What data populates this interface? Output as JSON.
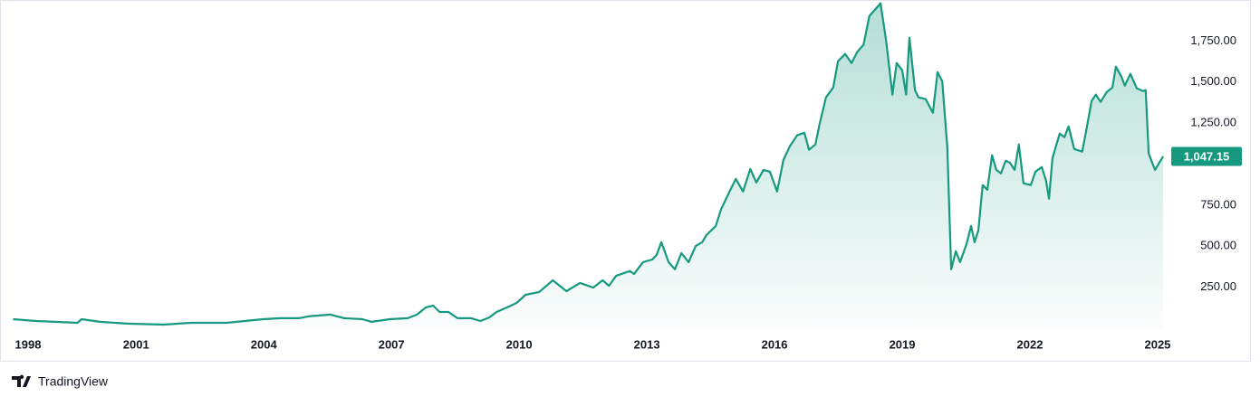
{
  "chart_data": {
    "type": "area",
    "source": "TradingView",
    "color": "#16997f",
    "xlim": [
      1998.1,
      2025.15
    ],
    "xticks": [
      1998,
      2001,
      2004,
      2007,
      2010,
      2013,
      2016,
      2019,
      2022,
      2025
    ],
    "ylim": [
      0,
      2000
    ],
    "yticks": [
      {
        "value": 250,
        "label": "250.00"
      },
      {
        "value": 500,
        "label": "500.00"
      },
      {
        "value": 750,
        "label": "750.00"
      },
      {
        "value": 1250,
        "label": "1,250.00"
      },
      {
        "value": 1500,
        "label": "1,500.00"
      },
      {
        "value": 1750,
        "label": "1,750.00"
      }
    ],
    "last_value": {
      "value": 1047.15,
      "label": "1,047.15"
    },
    "x": [
      1998.11,
      1998.66,
      1999.09,
      1999.62,
      1999.72,
      2000.15,
      2000.79,
      2001.64,
      2002.28,
      2003.13,
      2003.55,
      2003.98,
      2004.4,
      2004.83,
      2005.04,
      2005.57,
      2005.89,
      2006.32,
      2006.53,
      2006.96,
      2007.38,
      2007.6,
      2007.81,
      2007.98,
      2008.13,
      2008.34,
      2008.55,
      2008.87,
      2009.09,
      2009.3,
      2009.47,
      2009.72,
      2009.94,
      2010.15,
      2010.47,
      2010.79,
      2011.11,
      2011.43,
      2011.74,
      2011.96,
      2012.11,
      2012.28,
      2012.6,
      2012.7,
      2012.91,
      2013.13,
      2013.23,
      2013.34,
      2013.51,
      2013.66,
      2013.81,
      2013.98,
      2014.15,
      2014.3,
      2014.4,
      2014.62,
      2014.74,
      2014.91,
      2015.09,
      2015.26,
      2015.43,
      2015.57,
      2015.74,
      2015.89,
      2016.06,
      2016.21,
      2016.36,
      2016.53,
      2016.7,
      2016.81,
      2016.96,
      2017.06,
      2017.21,
      2017.38,
      2017.49,
      2017.66,
      2017.81,
      2017.94,
      2018.09,
      2018.23,
      2018.38,
      2018.49,
      2018.62,
      2018.77,
      2018.87,
      2019.0,
      2019.09,
      2019.17,
      2019.3,
      2019.38,
      2019.55,
      2019.72,
      2019.83,
      2019.94,
      2020.06,
      2020.15,
      2020.26,
      2020.36,
      2020.51,
      2020.62,
      2020.7,
      2020.79,
      2020.89,
      2021.0,
      2021.11,
      2021.21,
      2021.32,
      2021.43,
      2021.53,
      2021.64,
      2021.74,
      2021.85,
      2022.02,
      2022.13,
      2022.28,
      2022.38,
      2022.45,
      2022.53,
      2022.7,
      2022.81,
      2022.91,
      2023.04,
      2023.23,
      2023.34,
      2023.45,
      2023.55,
      2023.66,
      2023.81,
      2023.94,
      2024.02,
      2024.15,
      2024.23,
      2024.36,
      2024.51,
      2024.66,
      2024.72,
      2024.79,
      2024.94,
      2025.04,
      2025.13
    ],
    "values": [
      55,
      44,
      39,
      33,
      55,
      39,
      28,
      22,
      33,
      33,
      44,
      55,
      61,
      61,
      72,
      83,
      61,
      55,
      39,
      55,
      61,
      83,
      127,
      138,
      99,
      99,
      61,
      61,
      44,
      66,
      99,
      127,
      154,
      204,
      221,
      292,
      226,
      276,
      248,
      292,
      259,
      320,
      348,
      331,
      403,
      419,
      447,
      524,
      403,
      359,
      458,
      403,
      502,
      524,
      568,
      623,
      723,
      816,
      910,
      833,
      971,
      888,
      965,
      954,
      833,
      1026,
      1109,
      1175,
      1191,
      1087,
      1120,
      1247,
      1407,
      1467,
      1627,
      1671,
      1616,
      1682,
      1727,
      1903,
      1947,
      1980,
      1754,
      1423,
      1616,
      1572,
      1423,
      1771,
      1451,
      1407,
      1396,
      1313,
      1561,
      1506,
      1103,
      359,
      469,
      403,
      513,
      623,
      524,
      596,
      872,
      844,
      1054,
      965,
      943,
      1020,
      1009,
      965,
      1120,
      883,
      872,
      954,
      982,
      899,
      789,
      1037,
      1186,
      1164,
      1230,
      1092,
      1076,
      1230,
      1385,
      1423,
      1379,
      1440,
      1467,
      1594,
      1533,
      1478,
      1550,
      1462,
      1445,
      1451,
      1065,
      965,
      1009,
      1047.15
    ]
  }
}
